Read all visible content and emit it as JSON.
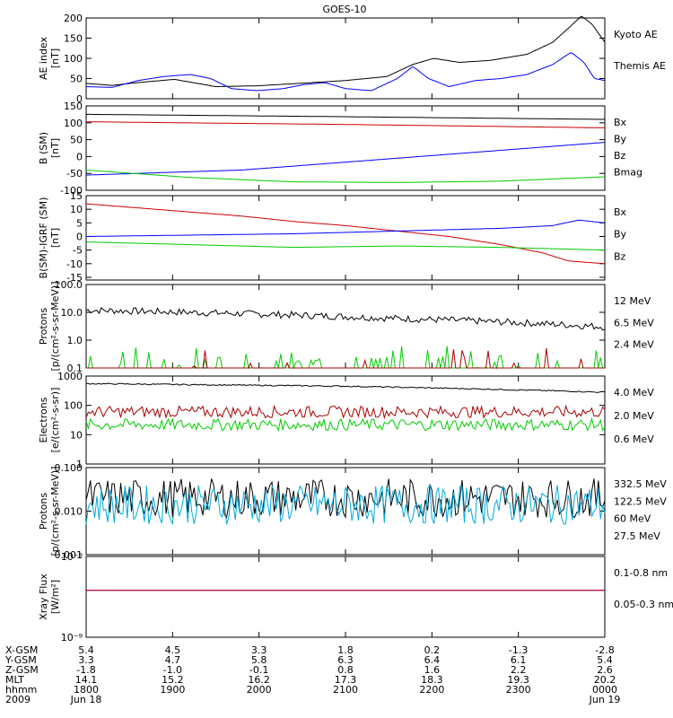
{
  "title": "GOES-10",
  "chart_data": {
    "type": "line",
    "title": "GOES-10",
    "x_ticks": [
      "1800",
      "1900",
      "2000",
      "2100",
      "2200",
      "2300",
      "0000"
    ],
    "panels": [
      {
        "id": "ae",
        "ylabel": [
          "AE index",
          "[nT]"
        ],
        "scale": "linear",
        "ylim": [
          0,
          200
        ],
        "ytick_labels": [
          "0",
          "50",
          "100",
          "150",
          "200"
        ],
        "ytick_values": [
          0,
          50,
          100,
          150,
          200
        ],
        "legend": [
          {
            "text": "Kyoto AE",
            "color": "#0000ff"
          },
          {
            "text": "Themis AE",
            "color": "#000000"
          }
        ],
        "series": [
          {
            "name": "Themis AE",
            "color": "#000000",
            "points": [
              [
                0,
                38
              ],
              [
                0.05,
                33
              ],
              [
                0.1,
                40
              ],
              [
                0.17,
                48
              ],
              [
                0.25,
                30
              ],
              [
                0.33,
                32
              ],
              [
                0.41,
                38
              ],
              [
                0.5,
                45
              ],
              [
                0.58,
                55
              ],
              [
                0.63,
                85
              ],
              [
                0.67,
                100
              ],
              [
                0.72,
                90
              ],
              [
                0.78,
                95
              ],
              [
                0.85,
                110
              ],
              [
                0.9,
                140
              ],
              [
                0.93,
                175
              ],
              [
                0.955,
                205
              ],
              [
                0.975,
                185
              ],
              [
                1.0,
                140
              ]
            ]
          },
          {
            "name": "Kyoto AE",
            "color": "#0000ff",
            "points": [
              [
                0,
                30
              ],
              [
                0.05,
                28
              ],
              [
                0.1,
                45
              ],
              [
                0.15,
                55
              ],
              [
                0.2,
                60
              ],
              [
                0.24,
                50
              ],
              [
                0.28,
                25
              ],
              [
                0.33,
                20
              ],
              [
                0.38,
                25
              ],
              [
                0.42,
                35
              ],
              [
                0.46,
                40
              ],
              [
                0.5,
                25
              ],
              [
                0.55,
                20
              ],
              [
                0.6,
                50
              ],
              [
                0.63,
                80
              ],
              [
                0.66,
                50
              ],
              [
                0.7,
                30
              ],
              [
                0.75,
                45
              ],
              [
                0.8,
                50
              ],
              [
                0.85,
                60
              ],
              [
                0.9,
                85
              ],
              [
                0.935,
                115
              ],
              [
                0.96,
                90
              ],
              [
                0.98,
                50
              ],
              [
                1.0,
                45
              ]
            ]
          }
        ]
      },
      {
        "id": "b",
        "ylabel": [
          "B (SM)",
          "[nT]"
        ],
        "scale": "linear",
        "ylim": [
          -100,
          150
        ],
        "ytick_labels": [
          "-100",
          "-50",
          "0",
          "50",
          "100",
          "150"
        ],
        "ytick_values": [
          -100,
          -50,
          0,
          50,
          100,
          150
        ],
        "legend": [
          {
            "text": "Bx",
            "color": "#0000ff"
          },
          {
            "text": "By",
            "color": "#00cc00"
          },
          {
            "text": "Bz",
            "color": "#cc0000"
          },
          {
            "text": "Bmag",
            "color": "#000000"
          }
        ],
        "series": [
          {
            "name": "Bmag",
            "color": "#000000",
            "points": [
              [
                0,
                125
              ],
              [
                0.5,
                118
              ],
              [
                1.0,
                110
              ]
            ]
          },
          {
            "name": "Bz",
            "color": "#cc0000",
            "points": [
              [
                0,
                103
              ],
              [
                0.5,
                95
              ],
              [
                1.0,
                85
              ]
            ]
          },
          {
            "name": "Bx",
            "color": "#0000ff",
            "points": [
              [
                0,
                -55
              ],
              [
                0.3,
                -40
              ],
              [
                0.6,
                -5
              ],
              [
                1.0,
                42
              ]
            ]
          },
          {
            "name": "By",
            "color": "#00cc00",
            "points": [
              [
                0,
                -40
              ],
              [
                0.2,
                -62
              ],
              [
                0.4,
                -75
              ],
              [
                0.6,
                -77
              ],
              [
                0.8,
                -73
              ],
              [
                1.0,
                -60
              ]
            ]
          }
        ]
      },
      {
        "id": "bdiff",
        "ylabel": [
          "B(SM)-IGRF (SM)",
          "[nT]"
        ],
        "scale": "linear",
        "ylim": [
          -16,
          15
        ],
        "ytick_labels": [
          "-15",
          "-10",
          "-5",
          "0",
          "5",
          "10",
          "15"
        ],
        "ytick_values": [
          -15,
          -10,
          -5,
          0,
          5,
          10,
          15
        ],
        "legend": [
          {
            "text": "Bx",
            "color": "#0000ff"
          },
          {
            "text": "By",
            "color": "#00cc00"
          },
          {
            "text": "Bz",
            "color": "#cc0000"
          }
        ],
        "series": [
          {
            "name": "Bz",
            "color": "#cc0000",
            "points": [
              [
                0,
                12
              ],
              [
                0.1,
                10.5
              ],
              [
                0.2,
                9
              ],
              [
                0.3,
                7.5
              ],
              [
                0.4,
                5.5
              ],
              [
                0.5,
                4
              ],
              [
                0.6,
                2
              ],
              [
                0.7,
                0
              ],
              [
                0.8,
                -3
              ],
              [
                0.88,
                -6
              ],
              [
                0.93,
                -9
              ],
              [
                1.0,
                -10
              ]
            ]
          },
          {
            "name": "Bx",
            "color": "#0000ff",
            "points": [
              [
                0,
                0
              ],
              [
                0.2,
                0.5
              ],
              [
                0.4,
                1
              ],
              [
                0.6,
                2
              ],
              [
                0.8,
                3
              ],
              [
                0.9,
                4
              ],
              [
                0.95,
                6
              ],
              [
                1.0,
                5
              ]
            ]
          },
          {
            "name": "By",
            "color": "#00cc00",
            "points": [
              [
                0,
                -2
              ],
              [
                0.2,
                -3
              ],
              [
                0.4,
                -4
              ],
              [
                0.6,
                -3.5
              ],
              [
                0.8,
                -4
              ],
              [
                0.9,
                -4.5
              ],
              [
                1.0,
                -5
              ]
            ]
          }
        ]
      },
      {
        "id": "protons",
        "ylabel": [
          "Protons",
          "[p/(cm²-s-sr-MeV)]"
        ],
        "scale": "log",
        "ylim": [
          0.1,
          100
        ],
        "ytick_labels": [
          "0.1",
          "1.0",
          "10.0",
          "100.0"
        ],
        "ytick_values": [
          0.1,
          1,
          10,
          100
        ],
        "legend": [
          {
            "text": "12 MeV",
            "color": "#aa0000"
          },
          {
            "text": "6.5 MeV",
            "color": "#00cc00"
          },
          {
            "text": "2.4 MeV",
            "color": "#000000"
          }
        ],
        "series": [
          {
            "name": "2.4 MeV",
            "color": "#000000",
            "points": [
              [
                0,
                12
              ],
              [
                0.2,
                10
              ],
              [
                0.4,
                8
              ],
              [
                0.6,
                6
              ],
              [
                0.8,
                4.5
              ],
              [
                1.0,
                3
              ]
            ]
          },
          {
            "name": "6.5 MeV",
            "color": "#00cc00",
            "points": [
              [
                0,
                0.1
              ],
              [
                1.0,
                0.1
              ]
            ]
          },
          {
            "name": "12 MeV",
            "color": "#aa0000",
            "points": [
              [
                0,
                0.1
              ],
              [
                1.0,
                0.1
              ]
            ]
          }
        ]
      },
      {
        "id": "electrons",
        "ylabel": [
          "Electrons",
          "[e/(cm²-s-sr)]"
        ],
        "scale": "log",
        "ylim": [
          1,
          1000
        ],
        "ytick_labels": [
          "1",
          "10",
          "100",
          "1000"
        ],
        "ytick_values": [
          1,
          10,
          100,
          1000
        ],
        "legend": [
          {
            "text": "4.0 MeV",
            "color": "#aa0000"
          },
          {
            "text": "2.0 MeV",
            "color": "#00cc00"
          },
          {
            "text": "0.6 MeV",
            "color": "#000000"
          }
        ],
        "series": [
          {
            "name": "0.6 MeV",
            "color": "#000000",
            "points": [
              [
                0,
                550
              ],
              [
                0.5,
                450
              ],
              [
                1.0,
                280
              ]
            ]
          },
          {
            "name": "4.0 MeV",
            "color": "#aa0000",
            "points": [
              [
                0,
                60
              ],
              [
                1.0,
                60
              ]
            ]
          },
          {
            "name": "2.0 MeV",
            "color": "#00cc00",
            "points": [
              [
                0,
                22
              ],
              [
                1.0,
                22
              ]
            ]
          }
        ]
      },
      {
        "id": "protons_hi",
        "ylabel": [
          "Protons",
          "[p/(cm²-s-sr-MeV)]"
        ],
        "scale": "log",
        "ylim": [
          0.001,
          0.1
        ],
        "ytick_labels": [
          "0.001",
          "0.010",
          "0.100"
        ],
        "ytick_values": [
          0.001,
          0.01,
          0.1
        ],
        "legend": [
          {
            "text": "332.5 MeV",
            "color": "#aa0000"
          },
          {
            "text": "122.5 MeV",
            "color": "#ffdd00"
          },
          {
            "text": "60 MeV",
            "color": "#00aadd"
          },
          {
            "text": "27.5 MeV",
            "color": "#000000"
          }
        ],
        "series": [
          {
            "name": "27.5 MeV",
            "color": "#000000",
            "points": [
              [
                0,
                0.02
              ],
              [
                1.0,
                0.02
              ]
            ]
          },
          {
            "name": "60 MeV",
            "color": "#00aadd",
            "points": [
              [
                0,
                0.014
              ],
              [
                1.0,
                0.014
              ]
            ]
          }
        ]
      },
      {
        "id": "xray",
        "ylabel": [
          "Xray Flux",
          "[W/m²]"
        ],
        "scale": "log",
        "ylim": [
          1e-09,
          1e-08
        ],
        "ytick_labels": [
          "10⁻⁹",
          "10⁻⁸"
        ],
        "ytick_values": [
          1e-09,
          1e-08
        ],
        "legend": [
          {
            "text": "0.1-0.8 nm",
            "color": "#cc0000"
          },
          {
            "text": "0.05-0.3 nm",
            "color": "#0000ff"
          }
        ],
        "series": [
          {
            "name": "0.05-0.3 nm",
            "color": "#0000ff",
            "points": [
              [
                0,
                3.8e-09
              ],
              [
                1.0,
                3.8e-09
              ]
            ]
          },
          {
            "name": "0.1-0.8 nm",
            "color": "#cc0000",
            "points": [
              [
                0,
                3.8e-09
              ],
              [
                1.0,
                3.8e-09
              ]
            ]
          }
        ]
      }
    ],
    "ephemeris": {
      "row_labels": [
        "X-GSM",
        "Y-GSM",
        "Z-GSM",
        "MLT",
        "hhmm",
        "2009"
      ],
      "columns": [
        [
          "5.4",
          "3.3",
          "-1.8",
          "14.1",
          "1800",
          "Jun 18"
        ],
        [
          "4.5",
          "4.7",
          "-1.0",
          "15.2",
          "1900",
          ""
        ],
        [
          "3.3",
          "5.8",
          "-0.1",
          "16.2",
          "2000",
          ""
        ],
        [
          "1.8",
          "6.3",
          "0.8",
          "17.3",
          "2100",
          ""
        ],
        [
          "0.2",
          "6.4",
          "1.6",
          "18.3",
          "2200",
          ""
        ],
        [
          "-1.3",
          "6.1",
          "2.2",
          "19.3",
          "2300",
          ""
        ],
        [
          "-2.8",
          "5.4",
          "2.6",
          "20.2",
          "0000",
          "Jun 19"
        ]
      ]
    }
  }
}
